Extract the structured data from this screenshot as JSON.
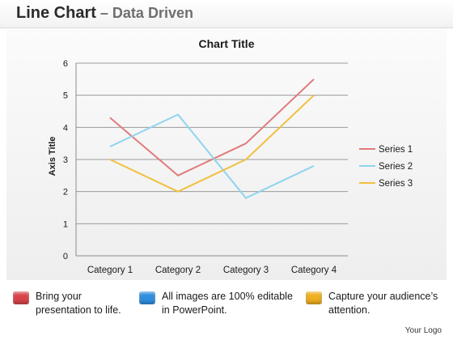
{
  "header": {
    "title_main": "Line Chart",
    "title_sep": " – ",
    "title_sub": "Data Driven"
  },
  "chart_data": {
    "type": "line",
    "title": "Chart Title",
    "xlabel": "",
    "ylabel": "Axis Title",
    "categories": [
      "Category 1",
      "Category 2",
      "Category 3",
      "Category 4"
    ],
    "ylim": [
      0,
      6
    ],
    "yticks": [
      "0",
      "1",
      "2",
      "3",
      "4",
      "5",
      "6"
    ],
    "grid": true,
    "legend_position": "right",
    "series": [
      {
        "name": "Series 1",
        "values": [
          4.3,
          2.5,
          3.5,
          5.5
        ],
        "color": "#e07b7b"
      },
      {
        "name": "Series 2",
        "values": [
          3.4,
          4.4,
          1.8,
          2.8
        ],
        "color": "#8fd3f0"
      },
      {
        "name": "Series 3",
        "values": [
          3.0,
          2.0,
          3.0,
          5.0
        ],
        "color": "#f0c040"
      }
    ]
  },
  "footer": {
    "items": [
      {
        "line1": "Bring your",
        "line2": "presentation to life.",
        "color": "#d9444a"
      },
      {
        "line1": "All images are 100% editable",
        "line2": "in PowerPoint.",
        "color": "#2e8fe0"
      },
      {
        "line1": "Capture your audience’s",
        "line2": "attention.",
        "color": "#f0b020"
      }
    ],
    "logo_text": "Your Logo"
  }
}
